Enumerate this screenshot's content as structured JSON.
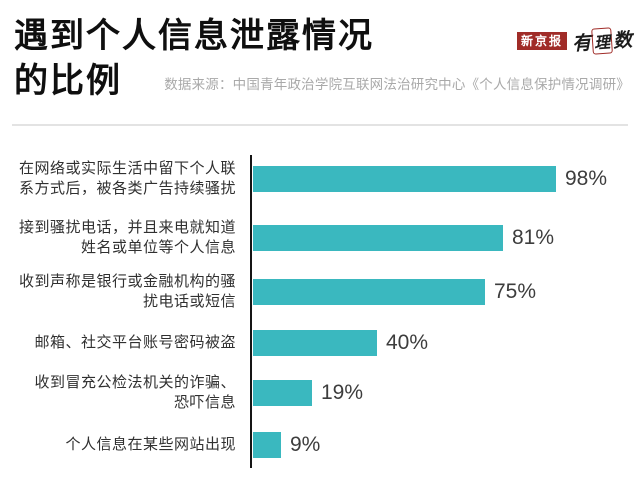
{
  "header": {
    "title_line1": "遇到个人信息泄露情况",
    "title_line2": "的比例",
    "brand_primary": "新京报",
    "brand_secondary": "有理数",
    "source": "数据来源：中国青年政治学院互联网法治研究中心《个人信息保护情况调研》"
  },
  "colors": {
    "bar": "#3ab8bf",
    "brand_red": "#a02c28",
    "axis": "#151515",
    "category_label": "#303030",
    "value_label": "#3d3d3d",
    "source_text": "#a9a9a9"
  },
  "chart_data": {
    "type": "bar",
    "orientation": "horizontal",
    "title": "遇到个人信息泄露情况的比例",
    "unit": "%",
    "xlim": [
      0,
      100
    ],
    "grid": false,
    "legend": false,
    "categories": [
      "在网络或实际生活中留下个人联系方式后，被各类广告持续骚扰",
      "接到骚扰电话，并且来电就知道姓名或单位等个人信息",
      "收到声称是银行或金融机构的骚扰电话或短信",
      "邮箱、社交平台账号密码被盗",
      "收到冒充公检法机关的诈骗、恐吓信息",
      "个人信息在某些网站出现"
    ],
    "category_lines": [
      [
        "在网络或实际生活中留下个人联",
        "系方式后，被各类广告持续骚扰"
      ],
      [
        "接到骚扰电话，并且来电就知道",
        "姓名或单位等个人信息"
      ],
      [
        "收到声称是银行或金融机构的骚",
        "扰电话或短信"
      ],
      [
        "邮箱、社交平台账号密码被盗"
      ],
      [
        "收到冒充公检法机关的诈骗、",
        "恐吓信息"
      ],
      [
        "个人信息在某些网站出现"
      ]
    ],
    "values": [
      98,
      81,
      75,
      40,
      19,
      9
    ],
    "value_labels": [
      "98%",
      "81%",
      "75%",
      "40%",
      "19%",
      "9%"
    ]
  }
}
